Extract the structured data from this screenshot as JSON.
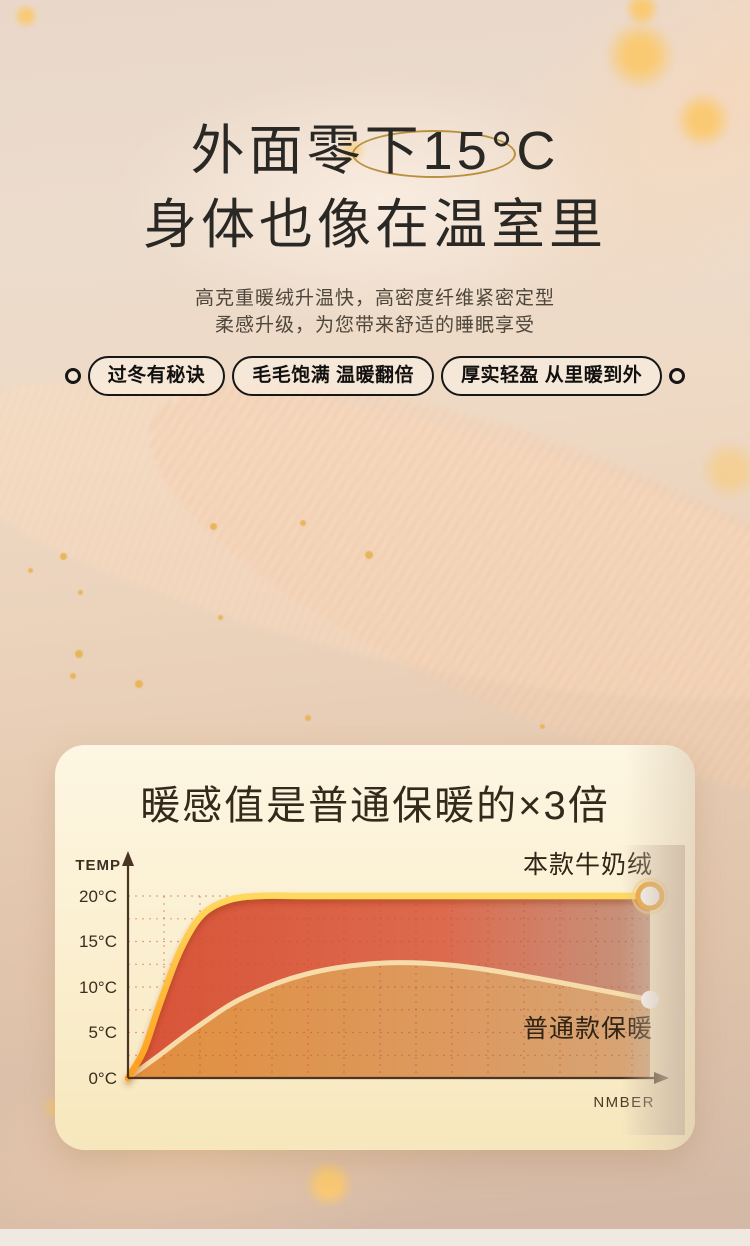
{
  "hero": {
    "title_line1": "外面零下15°C",
    "title_line2": "身体也像在温室里",
    "subtitle_line1": "高克重暖绒升温快，高密度纤维紧密定型",
    "subtitle_line2": "柔感升级，为您带来舒适的睡眠享受",
    "badges": [
      "过冬有秘诀",
      "毛毛饱满 温暖翻倍",
      "厚实轻盈 从里暖到外"
    ]
  },
  "chart_card": {
    "title": "暖感值是普通保暖的×3倍"
  },
  "chart_data": {
    "type": "area",
    "title": "暖感值是普通保暖的×3倍",
    "ylabel": "TEMP",
    "xlabel": "NMBER",
    "ylim": [
      0,
      20
    ],
    "xlim": [
      0,
      100
    ],
    "yticks": [
      0,
      5,
      10,
      15,
      20
    ],
    "ytick_labels": [
      "0°C",
      "5°C",
      "10°C",
      "15°C",
      "20°C"
    ],
    "grid": true,
    "legend_position": "inline-right",
    "series": [
      {
        "name": "本款牛奶绒",
        "line_color": "#ffb02e",
        "fill_color": "#db5b41",
        "x": [
          0,
          3,
          6,
          10,
          14,
          19,
          25,
          35,
          60,
          100
        ],
        "temp": [
          0,
          3,
          8,
          14,
          17.8,
          19.5,
          20,
          20,
          20,
          20
        ],
        "end_value": 20
      },
      {
        "name": "普通款保暖",
        "line_color": "#f6dcab",
        "fill_color": "#e4973f",
        "x": [
          0,
          6,
          13,
          22,
          34,
          48,
          62,
          78,
          100
        ],
        "temp": [
          0,
          2.5,
          5.5,
          8.8,
          11.4,
          12.6,
          12.4,
          11,
          8.6
        ],
        "end_value": 8.6
      }
    ]
  },
  "colors": {
    "accent_gold": "#b9913e",
    "card_top": "#fdf6e2",
    "card_bottom": "#f7e7bd",
    "grid_line": "#c05434",
    "axis": "#4a3525"
  }
}
